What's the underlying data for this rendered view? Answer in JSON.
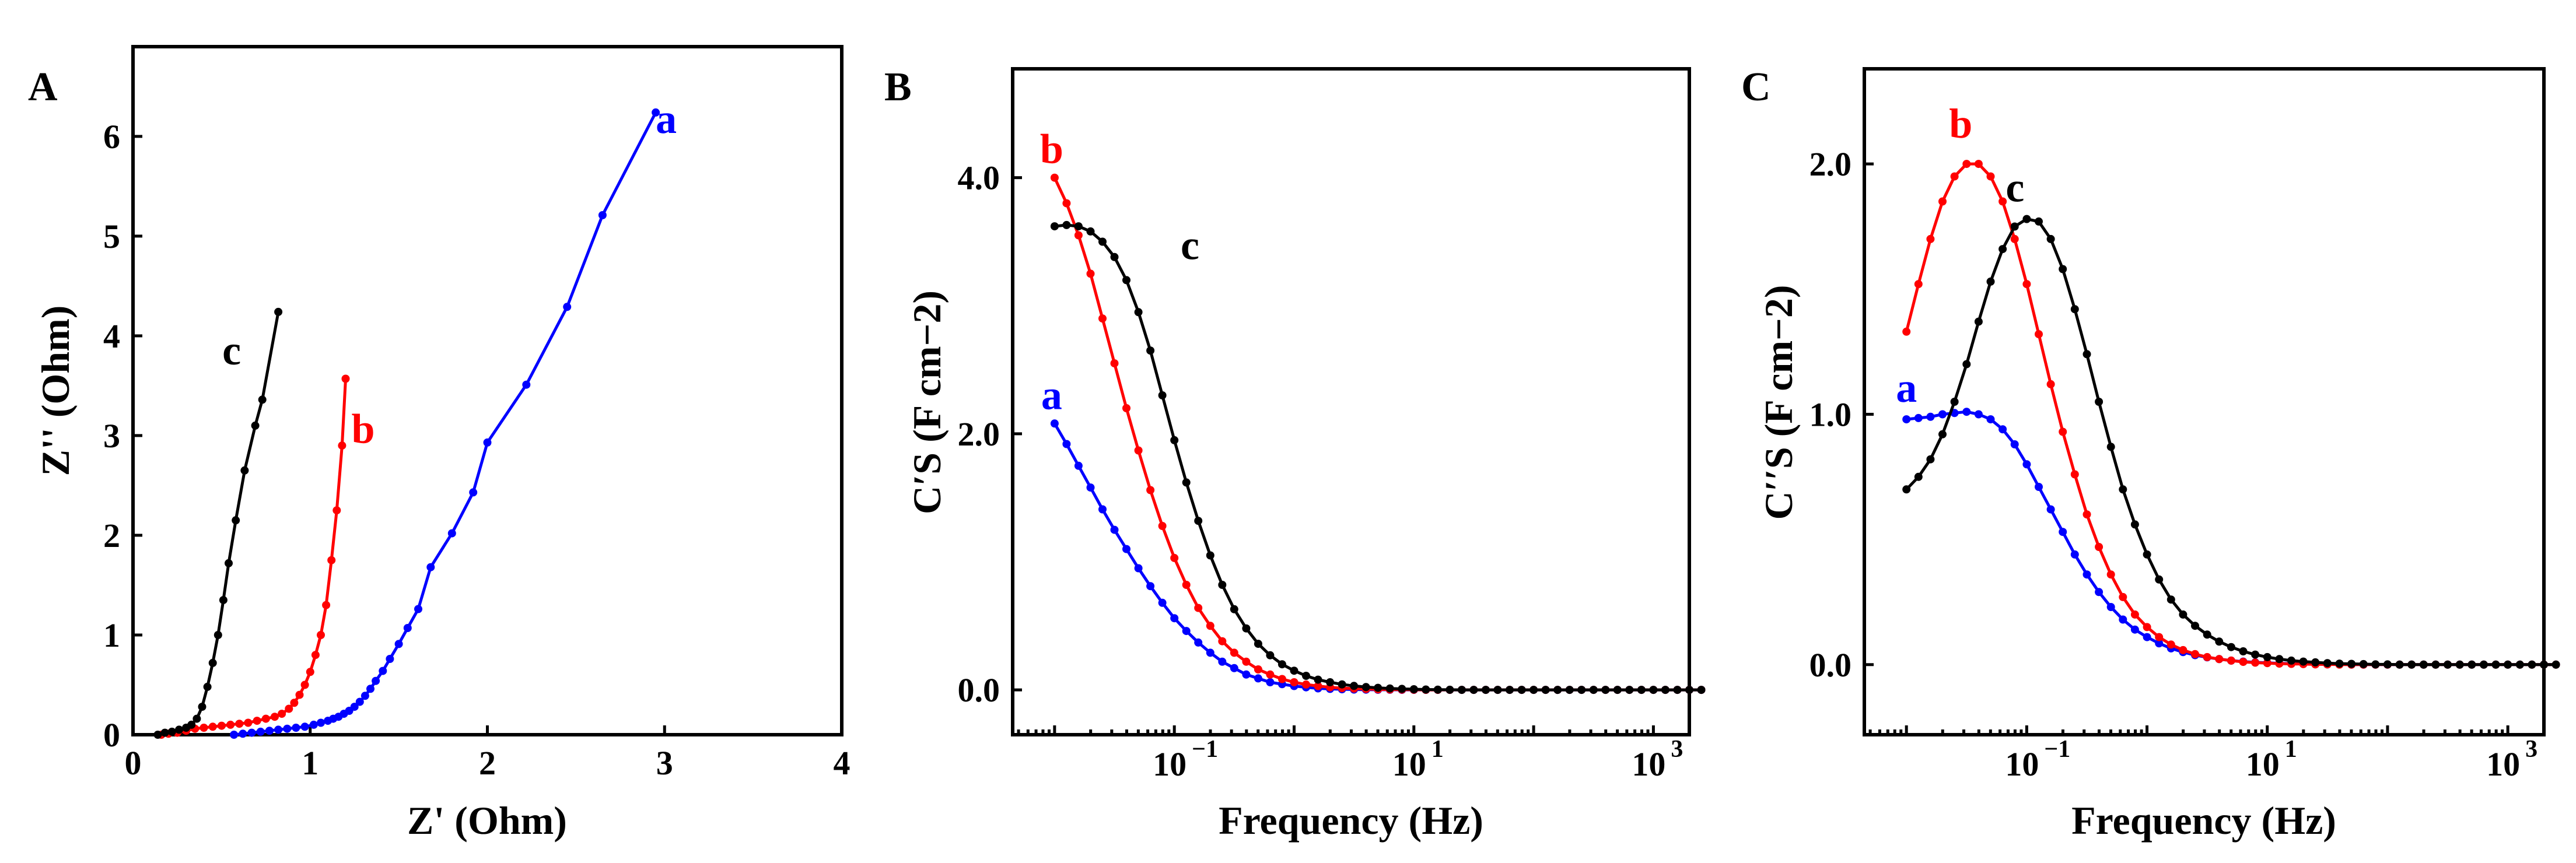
{
  "chart_data": [
    {
      "panel": "A",
      "type": "line",
      "xlabel": "Z' (Ohm)",
      "ylabel": "Z'' (Ohm)",
      "xlim": [
        0,
        4
      ],
      "ylim": [
        0,
        6.9
      ],
      "xscale": "linear",
      "xticks": [
        0,
        1,
        2,
        3,
        4
      ],
      "yticks": [
        0,
        1,
        2,
        3,
        4,
        5,
        6
      ],
      "series": [
        {
          "name": "a",
          "color": "#0000ff",
          "points": [
            [
              0.57,
              0.0
            ],
            [
              0.62,
              0.01
            ],
            [
              0.67,
              0.02
            ],
            [
              0.72,
              0.03
            ],
            [
              0.77,
              0.04
            ],
            [
              0.82,
              0.05
            ],
            [
              0.87,
              0.06
            ],
            [
              0.92,
              0.07
            ],
            [
              0.97,
              0.08
            ],
            [
              1.02,
              0.1
            ],
            [
              1.06,
              0.12
            ],
            [
              1.1,
              0.14
            ],
            [
              1.13,
              0.16
            ],
            [
              1.16,
              0.18
            ],
            [
              1.19,
              0.21
            ],
            [
              1.22,
              0.24
            ],
            [
              1.25,
              0.28
            ],
            [
              1.28,
              0.33
            ],
            [
              1.31,
              0.39
            ],
            [
              1.34,
              0.46
            ],
            [
              1.37,
              0.54
            ],
            [
              1.41,
              0.64
            ],
            [
              1.45,
              0.76
            ],
            [
              1.5,
              0.91
            ],
            [
              1.55,
              1.07
            ],
            [
              1.61,
              1.26
            ],
            [
              1.68,
              1.68
            ],
            [
              1.8,
              2.02
            ],
            [
              1.92,
              2.43
            ],
            [
              2.0,
              2.93
            ],
            [
              2.22,
              3.51
            ],
            [
              2.45,
              4.29
            ],
            [
              2.65,
              5.21
            ],
            [
              2.95,
              6.24
            ]
          ]
        },
        {
          "name": "b",
          "color": "#ff0000",
          "points": [
            [
              0.16,
              0.0
            ],
            [
              0.2,
              0.01
            ],
            [
              0.25,
              0.02
            ],
            [
              0.3,
              0.04
            ],
            [
              0.35,
              0.06
            ],
            [
              0.4,
              0.07
            ],
            [
              0.45,
              0.08
            ],
            [
              0.5,
              0.09
            ],
            [
              0.55,
              0.1
            ],
            [
              0.6,
              0.11
            ],
            [
              0.65,
              0.12
            ],
            [
              0.7,
              0.14
            ],
            [
              0.75,
              0.16
            ],
            [
              0.8,
              0.18
            ],
            [
              0.84,
              0.21
            ],
            [
              0.88,
              0.26
            ],
            [
              0.91,
              0.32
            ],
            [
              0.94,
              0.4
            ],
            [
              0.97,
              0.5
            ],
            [
              1.0,
              0.63
            ],
            [
              1.03,
              0.8
            ],
            [
              1.06,
              1.0
            ],
            [
              1.09,
              1.3
            ],
            [
              1.12,
              1.75
            ],
            [
              1.15,
              2.25
            ],
            [
              1.18,
              2.9
            ],
            [
              1.2,
              3.57
            ]
          ]
        },
        {
          "name": "c",
          "color": "#000000",
          "points": [
            [
              0.14,
              0.0
            ],
            [
              0.18,
              0.02
            ],
            [
              0.22,
              0.03
            ],
            [
              0.26,
              0.05
            ],
            [
              0.3,
              0.07
            ],
            [
              0.33,
              0.1
            ],
            [
              0.36,
              0.16
            ],
            [
              0.39,
              0.28
            ],
            [
              0.42,
              0.48
            ],
            [
              0.45,
              0.72
            ],
            [
              0.48,
              1.0
            ],
            [
              0.51,
              1.35
            ],
            [
              0.54,
              1.72
            ],
            [
              0.58,
              2.15
            ],
            [
              0.63,
              2.65
            ],
            [
              0.69,
              3.1
            ],
            [
              0.73,
              3.36
            ],
            [
              0.82,
              4.24
            ]
          ]
        }
      ]
    },
    {
      "panel": "B",
      "type": "line",
      "xlabel": "Frequency (Hz)",
      "ylabel": "C′S (F cm−2)",
      "xscale": "log",
      "xlim_log10": [
        -2.35,
        3.3
      ],
      "ylim": [
        -0.35,
        4.85
      ],
      "xticks": [
        "10",
        "10",
        "10"
      ],
      "xtick_exponents": [
        "−1",
        "1",
        "3"
      ],
      "xtick_values": [
        0.1,
        10,
        1000
      ],
      "yticks": [
        "0.0",
        "2.0",
        "4.0"
      ],
      "ytick_values": [
        0,
        2,
        4
      ],
      "series": [
        {
          "name": "a",
          "color": "#0000ff",
          "y": [
            2.08,
            1.92,
            1.75,
            1.58,
            1.41,
            1.25,
            1.1,
            0.95,
            0.81,
            0.68,
            0.56,
            0.46,
            0.37,
            0.29,
            0.22,
            0.17,
            0.12,
            0.09,
            0.06,
            0.045,
            0.03,
            0.02,
            0.012,
            0.008,
            0.005,
            0.003,
            0.002,
            0.001,
            0.001,
            0,
            0,
            0,
            0,
            0,
            0,
            0,
            0,
            0,
            0,
            0,
            0,
            0,
            0,
            0,
            0,
            0,
            0,
            0,
            0,
            0,
            0,
            0,
            0,
            0,
            0
          ]
        },
        {
          "name": "b",
          "color": "#ff0000",
          "y": [
            4.0,
            3.8,
            3.55,
            3.25,
            2.9,
            2.55,
            2.2,
            1.87,
            1.56,
            1.28,
            1.03,
            0.82,
            0.64,
            0.5,
            0.38,
            0.29,
            0.22,
            0.16,
            0.12,
            0.085,
            0.06,
            0.042,
            0.03,
            0.02,
            0.014,
            0.01,
            0.007,
            0.004,
            0.003,
            0.002,
            0.001,
            0,
            0,
            0,
            0,
            0,
            0,
            0,
            0,
            0,
            0,
            0,
            0,
            0,
            0,
            0,
            0,
            0,
            0,
            0,
            0,
            0,
            0,
            0,
            0
          ]
        },
        {
          "name": "c",
          "color": "#000000",
          "y": [
            3.62,
            3.63,
            3.62,
            3.58,
            3.5,
            3.38,
            3.2,
            2.95,
            2.65,
            2.3,
            1.95,
            1.62,
            1.32,
            1.05,
            0.82,
            0.63,
            0.48,
            0.36,
            0.27,
            0.2,
            0.15,
            0.11,
            0.08,
            0.06,
            0.043,
            0.031,
            0.022,
            0.016,
            0.011,
            0.008,
            0.005,
            0.003,
            0.002,
            0.001,
            0,
            0,
            0,
            0,
            0,
            0,
            0,
            0,
            0,
            0,
            0,
            0,
            0,
            0,
            0,
            0,
            0,
            0,
            0,
            0,
            0
          ]
        }
      ],
      "x_log10_start": -2.0,
      "x_log10_step": 0.1
    },
    {
      "panel": "C",
      "type": "line",
      "xlabel": "Frequency (Hz)",
      "ylabel": "C′′S (F cm−2)",
      "xscale": "log",
      "xlim_log10": [
        -2.35,
        3.3
      ],
      "ylim": [
        -0.28,
        2.38
      ],
      "xticks": [
        "10",
        "10",
        "10"
      ],
      "xtick_exponents": [
        "−1",
        "1",
        "3"
      ],
      "xtick_values": [
        0.1,
        10,
        1000
      ],
      "yticks": [
        "0.0",
        "1.0",
        "2.0"
      ],
      "ytick_values": [
        0,
        1,
        2
      ],
      "series": [
        {
          "name": "a",
          "color": "#0000ff",
          "y": [
            0.98,
            0.985,
            0.99,
            1.0,
            1.005,
            1.01,
            1.0,
            0.98,
            0.94,
            0.88,
            0.8,
            0.71,
            0.62,
            0.53,
            0.44,
            0.36,
            0.29,
            0.23,
            0.18,
            0.14,
            0.11,
            0.085,
            0.065,
            0.05,
            0.038,
            0.029,
            0.022,
            0.016,
            0.012,
            0.009,
            0.007,
            0.005,
            0.004,
            0.003,
            0.002,
            0.001,
            0.001,
            0,
            0,
            0,
            0,
            0,
            0,
            0,
            0,
            0,
            0,
            0,
            0,
            0,
            0,
            0,
            0,
            0,
            0
          ]
        },
        {
          "name": "b",
          "color": "#ff0000",
          "y": [
            1.33,
            1.52,
            1.7,
            1.85,
            1.95,
            2.0,
            2.0,
            1.95,
            1.85,
            1.7,
            1.52,
            1.32,
            1.12,
            0.93,
            0.76,
            0.6,
            0.47,
            0.36,
            0.27,
            0.2,
            0.15,
            0.11,
            0.08,
            0.058,
            0.042,
            0.03,
            0.022,
            0.016,
            0.011,
            0.008,
            0.006,
            0.004,
            0.003,
            0.002,
            0.001,
            0.001,
            0,
            0,
            0,
            0,
            0,
            0,
            0,
            0,
            0,
            0,
            0,
            0,
            0,
            0,
            0,
            0,
            0,
            0,
            0
          ]
        },
        {
          "name": "c",
          "color": "#000000",
          "y": [
            0.7,
            0.75,
            0.82,
            0.92,
            1.05,
            1.2,
            1.37,
            1.53,
            1.66,
            1.75,
            1.78,
            1.77,
            1.7,
            1.58,
            1.42,
            1.24,
            1.05,
            0.87,
            0.7,
            0.56,
            0.44,
            0.34,
            0.26,
            0.2,
            0.155,
            0.12,
            0.092,
            0.07,
            0.053,
            0.04,
            0.03,
            0.022,
            0.016,
            0.012,
            0.009,
            0.006,
            0.004,
            0.003,
            0.002,
            0.001,
            0.001,
            0,
            0,
            0,
            0,
            0,
            0,
            0,
            0,
            0,
            0,
            0,
            0,
            0,
            0
          ]
        }
      ],
      "x_log10_start": -2.0,
      "x_log10_step": 0.1
    }
  ],
  "panel_labels": [
    "A",
    "B",
    "C"
  ],
  "curve_labels": [
    "a",
    "b",
    "c"
  ]
}
